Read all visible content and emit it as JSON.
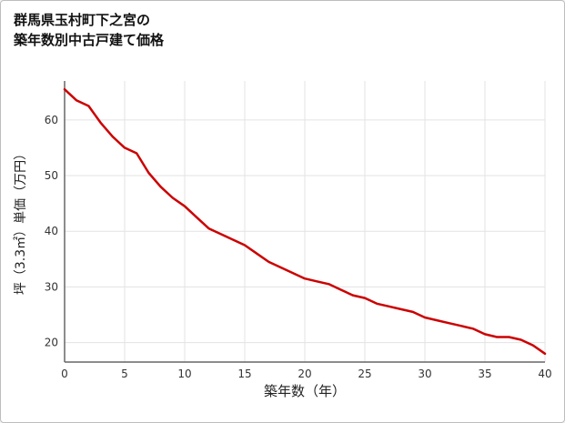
{
  "title": {
    "line1": "群馬県玉村町下之宮の",
    "line2": "築年数別中古戸建て価格"
  },
  "chart_data": {
    "type": "line",
    "title": "群馬県玉村町下之宮の築年数別中古戸建て価格",
    "x": [
      0,
      1,
      2,
      3,
      4,
      5,
      6,
      7,
      8,
      9,
      10,
      11,
      12,
      13,
      14,
      15,
      16,
      17,
      18,
      19,
      20,
      21,
      22,
      23,
      24,
      25,
      26,
      27,
      28,
      29,
      30,
      31,
      32,
      33,
      34,
      35,
      36,
      37,
      38,
      39,
      40
    ],
    "values": [
      65.5,
      63.5,
      62.5,
      59.5,
      57,
      55,
      54,
      50.5,
      48,
      46,
      44.5,
      42.5,
      40.5,
      39.5,
      38.5,
      37.5,
      36,
      34.5,
      33.5,
      32.5,
      31.5,
      31,
      30.5,
      29.5,
      28.5,
      28,
      27,
      26.5,
      26,
      25.5,
      24.5,
      24,
      23.5,
      23,
      22.5,
      21.5,
      21,
      21,
      20.5,
      19.5,
      18
    ],
    "xlabel": "築年数（年）",
    "ylabel": "坪（3.3㎡）単価（万円）",
    "xlim": [
      0,
      40
    ],
    "ylim": [
      16.5,
      67
    ],
    "xticks": [
      0,
      5,
      10,
      15,
      20,
      25,
      30,
      35,
      40
    ],
    "yticks": [
      20,
      30,
      40,
      50,
      60
    ],
    "grid": true,
    "legend": "none",
    "line_color": "#cc0000",
    "grid_color": "#e3e3e3",
    "axis_color": "#666666"
  }
}
